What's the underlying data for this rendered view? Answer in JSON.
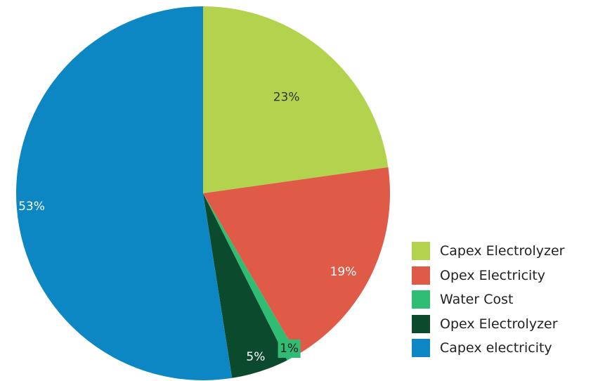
{
  "chart_data": {
    "type": "pie",
    "start_angle": "12 o'clock",
    "direction": "clockwise",
    "legend_position": "bottom-right",
    "slices": [
      {
        "label": "Capex Electrolyzer",
        "value": 23,
        "value_label": "23%",
        "color": "#b3d34f",
        "label_color": "#333333"
      },
      {
        "label": "Opex Electricity",
        "value": 19,
        "value_label": "19%",
        "color": "#e05a48",
        "label_color": "#ffffff"
      },
      {
        "label": "Water Cost",
        "value": 1,
        "value_label": "1%",
        "color": "#2ebd72",
        "label_color": "#1a1a1a"
      },
      {
        "label": "Opex Electrolyzer",
        "value": 5,
        "value_label": "5%",
        "color": "#0b4a2c",
        "label_color": "#ffffff"
      },
      {
        "label": "Capex electricity",
        "value": 53,
        "value_label": "53%",
        "color": "#0d87c3",
        "label_color": "#ffffff"
      }
    ]
  }
}
